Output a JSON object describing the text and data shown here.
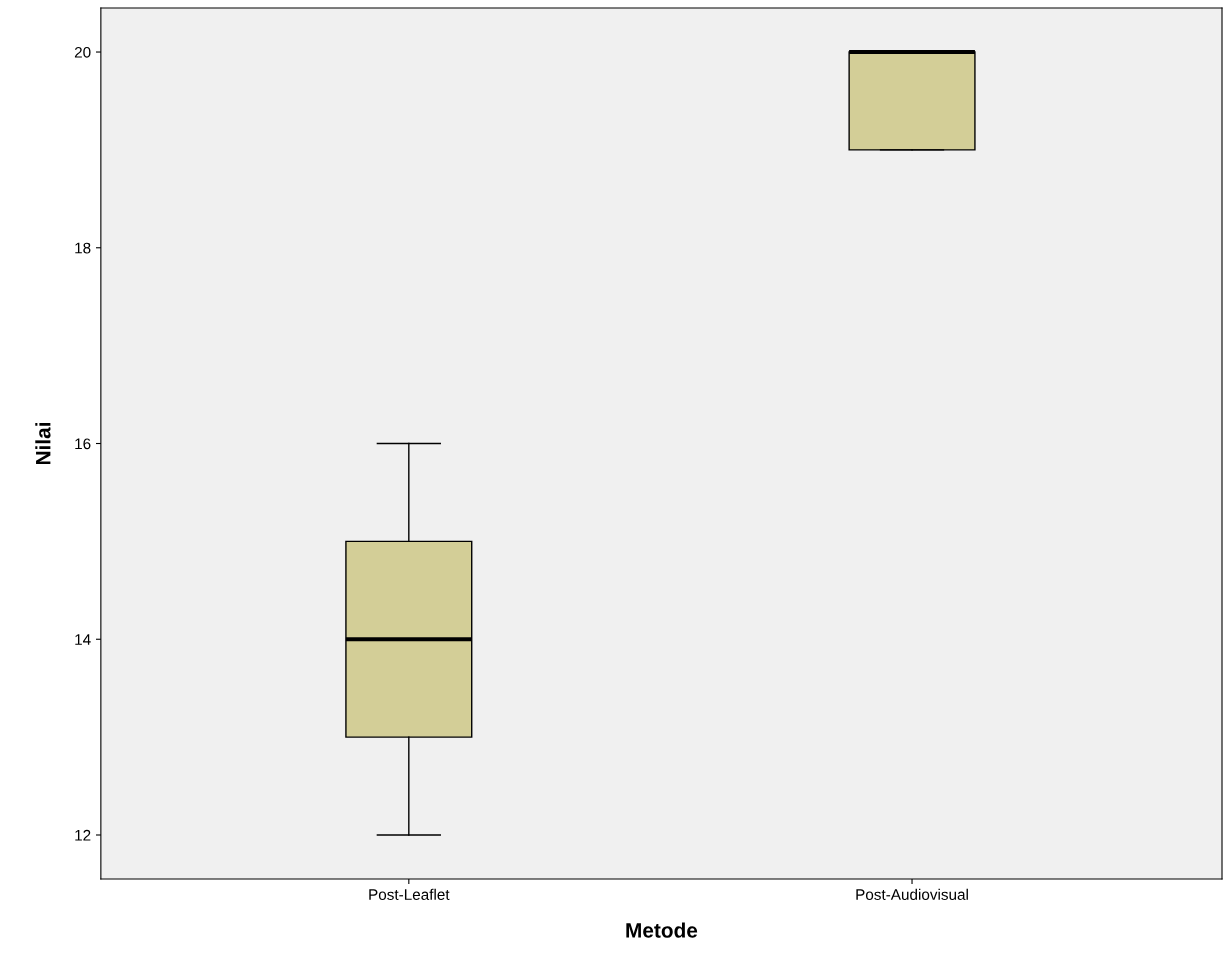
{
  "chart_data": {
    "type": "box",
    "xlabel": "Metode",
    "ylabel": "Nilai",
    "categories": [
      "Post-Leaflet",
      "Post-Audiovisual"
    ],
    "series": [
      {
        "color": "#d3ce97",
        "boxes": [
          {
            "low": 12,
            "q1": 13,
            "median": 14,
            "q3": 15,
            "high": 16
          },
          {
            "low": 19,
            "q1": 19,
            "median": 20,
            "q3": 20,
            "high": 20
          }
        ]
      }
    ],
    "ylim": [
      11.55,
      20.45
    ],
    "yticks": [
      12,
      14,
      16,
      18,
      20
    ],
    "grid": false
  }
}
